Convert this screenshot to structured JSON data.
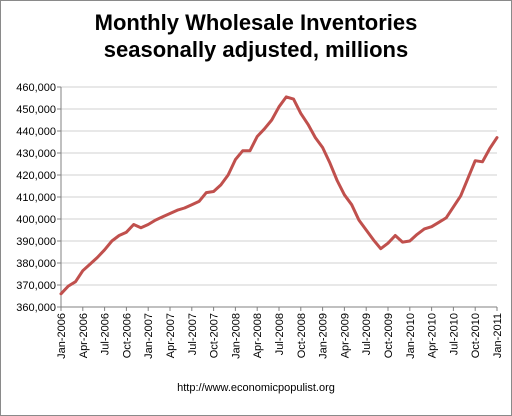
{
  "title_line1": "Monthly Wholesale Inventories",
  "title_line2": "seasonally adjusted, millions",
  "footer": "http://www.economicpopulist.org",
  "colors": {
    "line": "#c0504d",
    "grid": "#d0d0d0",
    "axis": "#808080"
  },
  "chart_data": {
    "type": "line",
    "title": "Monthly Wholesale Inventories seasonally adjusted, millions",
    "xlabel": "",
    "ylabel": "",
    "ylim": [
      360000,
      460000
    ],
    "yticks": [
      360000,
      370000,
      380000,
      390000,
      400000,
      410000,
      420000,
      430000,
      440000,
      450000,
      460000
    ],
    "ytick_labels": [
      "360,000",
      "370,000",
      "380,000",
      "390,000",
      "400,000",
      "410,000",
      "420,000",
      "430,000",
      "440,000",
      "450,000",
      "460,000"
    ],
    "xtick_labels": [
      "Jan-2006",
      "Apr-2006",
      "Jul-2006",
      "Oct-2006",
      "Jan-2007",
      "Apr-2007",
      "Jul-2007",
      "Oct-2007",
      "Jan-2008",
      "Apr-2008",
      "Jul-2008",
      "Oct-2008",
      "Jan-2009",
      "Apr-2009",
      "Jul-2009",
      "Oct-2009",
      "Jan-2010",
      "Apr-2010",
      "Jul-2010",
      "Oct-2010",
      "Jan-2011"
    ],
    "grid": true,
    "legend": "none",
    "series": [
      {
        "x": [
          "Jan-2006",
          "Feb-2006",
          "Mar-2006",
          "Apr-2006",
          "May-2006",
          "Jun-2006",
          "Jul-2006",
          "Aug-2006",
          "Sep-2006",
          "Oct-2006",
          "Nov-2006",
          "Dec-2006",
          "Jan-2007",
          "Feb-2007",
          "Mar-2007",
          "Apr-2007",
          "May-2007",
          "Jun-2007",
          "Jul-2007",
          "Aug-2007",
          "Sep-2007",
          "Oct-2007",
          "Nov-2007",
          "Dec-2007",
          "Jan-2008",
          "Feb-2008",
          "Mar-2008",
          "Apr-2008",
          "May-2008",
          "Jun-2008",
          "Jul-2008",
          "Aug-2008",
          "Sep-2008",
          "Oct-2008",
          "Nov-2008",
          "Dec-2008",
          "Jan-2009",
          "Feb-2009",
          "Mar-2009",
          "Apr-2009",
          "May-2009",
          "Jun-2009",
          "Jul-2009",
          "Aug-2009",
          "Sep-2009",
          "Oct-2009",
          "Nov-2009",
          "Dec-2009",
          "Jan-2010",
          "Feb-2010",
          "Mar-2010",
          "Apr-2010",
          "May-2010",
          "Jun-2010",
          "Jul-2010",
          "Aug-2010",
          "Sep-2010",
          "Oct-2010",
          "Nov-2010",
          "Dec-2010",
          "Jan-2011"
        ],
        "values": [
          366000,
          369500,
          371500,
          376500,
          379500,
          382500,
          386000,
          390000,
          392500,
          394000,
          397500,
          396000,
          397500,
          399500,
          401000,
          402500,
          404000,
          405000,
          406500,
          408000,
          412000,
          412500,
          415500,
          420000,
          427000,
          431000,
          431000,
          437500,
          441000,
          445000,
          451000,
          455500,
          454500,
          448000,
          443000,
          437000,
          432500,
          425500,
          417500,
          411000,
          406500,
          399500,
          395000,
          390500,
          386500,
          389000,
          392500,
          389500,
          390000,
          393000,
          395500,
          396500,
          398500,
          400500,
          405500,
          410500,
          418500,
          426500,
          426000,
          432000,
          437000
        ]
      }
    ]
  }
}
